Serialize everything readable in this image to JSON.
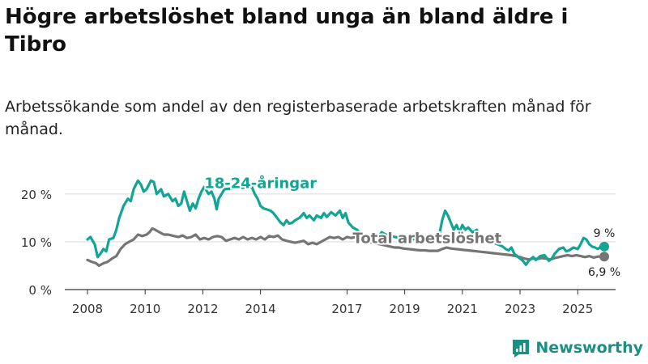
{
  "title": "Högre arbetslöshet bland unga än bland äldre i Tibro",
  "subtitle": "Arbetssökande som andel av den registerbaserade arbetskraften månad för månad.",
  "brand": {
    "name": "Newsworthy",
    "icon": "newsworthy-logo-icon"
  },
  "colors": {
    "youth": "#12a595",
    "total": "#757575",
    "grid": "#d9d9d9",
    "axis": "#333333"
  },
  "chart_data": {
    "type": "line",
    "title": "Högre arbetslöshet bland unga än bland äldre i Tibro",
    "xlabel": "",
    "ylabel": "",
    "xlim": [
      2008,
      2025.92
    ],
    "ylim": [
      0,
      22
    ],
    "grid": true,
    "x_ticks": [
      {
        "value": 2008,
        "label": "2008"
      },
      {
        "value": 2010,
        "label": "2010"
      },
      {
        "value": 2012,
        "label": "2012"
      },
      {
        "value": 2014,
        "label": "2014"
      },
      {
        "value": 2017,
        "label": "2017"
      },
      {
        "value": 2019,
        "label": "2019"
      },
      {
        "value": 2021,
        "label": "2021"
      },
      {
        "value": 2023,
        "label": "2023"
      },
      {
        "value": 2025,
        "label": "2025"
      }
    ],
    "y_ticks": [
      {
        "value": 0,
        "label": "0 %"
      },
      {
        "value": 10,
        "label": "10 %"
      },
      {
        "value": 20,
        "label": "20 %"
      }
    ],
    "series": [
      {
        "name": "18-24-åringar",
        "label": "18-24-åringar",
        "end_label": "9 %",
        "end_value": 9,
        "gaps": [
          [
            2014.12,
            2014.32
          ],
          [
            2017.52,
            2017.82
          ],
          [
            2018.52,
            2018.72
          ],
          [
            2019.28,
            2020.18
          ],
          [
            2022.12,
            2022.38
          ]
        ],
        "points": [
          [
            2008.0,
            10.5
          ],
          [
            2008.1,
            11.0
          ],
          [
            2008.25,
            9.5
          ],
          [
            2008.35,
            6.8
          ],
          [
            2008.45,
            7.5
          ],
          [
            2008.55,
            8.5
          ],
          [
            2008.65,
            8.0
          ],
          [
            2008.75,
            10.5
          ],
          [
            2008.9,
            10.8
          ],
          [
            2009.0,
            12.5
          ],
          [
            2009.1,
            15.0
          ],
          [
            2009.25,
            17.5
          ],
          [
            2009.4,
            19.0
          ],
          [
            2009.5,
            18.5
          ],
          [
            2009.6,
            21.0
          ],
          [
            2009.75,
            22.8
          ],
          [
            2009.85,
            22.0
          ],
          [
            2009.95,
            20.5
          ],
          [
            2010.05,
            21.0
          ],
          [
            2010.2,
            22.8
          ],
          [
            2010.3,
            22.5
          ],
          [
            2010.4,
            20.0
          ],
          [
            2010.55,
            21.0
          ],
          [
            2010.65,
            19.5
          ],
          [
            2010.8,
            20.0
          ],
          [
            2010.95,
            18.5
          ],
          [
            2011.05,
            19.0
          ],
          [
            2011.15,
            17.5
          ],
          [
            2011.25,
            18.0
          ],
          [
            2011.35,
            20.5
          ],
          [
            2011.45,
            18.5
          ],
          [
            2011.55,
            16.5
          ],
          [
            2011.65,
            18.0
          ],
          [
            2011.75,
            17.0
          ],
          [
            2011.85,
            19.0
          ],
          [
            2011.95,
            20.5
          ],
          [
            2012.05,
            21.5
          ],
          [
            2012.2,
            20.0
          ],
          [
            2012.3,
            20.5
          ],
          [
            2012.4,
            19.0
          ],
          [
            2012.48,
            16.8
          ],
          [
            2012.55,
            19.0
          ],
          [
            2012.65,
            20.0
          ],
          [
            2012.75,
            21.0
          ],
          [
            2013.7,
            21.5
          ],
          [
            2013.8,
            20.0
          ],
          [
            2013.9,
            19.0
          ],
          [
            2014.0,
            17.5
          ],
          [
            2014.1,
            17.0
          ],
          [
            2014.35,
            16.5
          ],
          [
            2014.45,
            16.0
          ],
          [
            2014.55,
            15.2
          ],
          [
            2014.7,
            14.0
          ],
          [
            2014.8,
            13.5
          ],
          [
            2014.9,
            14.5
          ],
          [
            2015.0,
            13.8
          ],
          [
            2015.1,
            14.0
          ],
          [
            2015.2,
            14.5
          ],
          [
            2015.35,
            15.0
          ],
          [
            2015.5,
            16.0
          ],
          [
            2015.6,
            15.0
          ],
          [
            2015.7,
            15.5
          ],
          [
            2015.85,
            14.5
          ],
          [
            2015.95,
            15.5
          ],
          [
            2016.1,
            15.0
          ],
          [
            2016.2,
            16.0
          ],
          [
            2016.3,
            15.2
          ],
          [
            2016.45,
            16.2
          ],
          [
            2016.6,
            15.5
          ],
          [
            2016.75,
            16.5
          ],
          [
            2016.85,
            15.0
          ],
          [
            2016.95,
            16.0
          ],
          [
            2017.05,
            14.0
          ],
          [
            2017.2,
            13.0
          ],
          [
            2017.35,
            12.5
          ],
          [
            2017.5,
            11.5
          ],
          [
            2017.85,
            11.0
          ],
          [
            2017.95,
            11.5
          ],
          [
            2018.1,
            11.0
          ],
          [
            2018.2,
            12.0
          ],
          [
            2018.35,
            11.5
          ],
          [
            2018.5,
            11.2
          ],
          [
            2018.75,
            10.9
          ],
          [
            2019.0,
            11.0
          ],
          [
            2019.15,
            10.8
          ],
          [
            2019.25,
            10.5
          ],
          [
            2020.2,
            11.5
          ],
          [
            2020.3,
            14.5
          ],
          [
            2020.4,
            16.5
          ],
          [
            2020.5,
            15.5
          ],
          [
            2020.6,
            14.0
          ],
          [
            2020.7,
            12.5
          ],
          [
            2020.8,
            13.5
          ],
          [
            2020.9,
            12.0
          ],
          [
            2021.0,
            13.5
          ],
          [
            2021.1,
            12.5
          ],
          [
            2021.2,
            13.0
          ],
          [
            2021.35,
            12.0
          ],
          [
            2021.5,
            12.5
          ],
          [
            2021.6,
            11.0
          ],
          [
            2021.7,
            10.5
          ],
          [
            2021.85,
            11.0
          ],
          [
            2022.0,
            10.2
          ],
          [
            2022.1,
            9.8
          ],
          [
            2022.4,
            9.0
          ],
          [
            2022.5,
            8.5
          ],
          [
            2022.6,
            8.2
          ],
          [
            2022.7,
            8.8
          ],
          [
            2022.8,
            7.5
          ],
          [
            2022.9,
            7.0
          ],
          [
            2023.0,
            6.5
          ],
          [
            2023.1,
            6.0
          ],
          [
            2023.2,
            5.2
          ],
          [
            2023.3,
            6.0
          ],
          [
            2023.45,
            6.8
          ],
          [
            2023.55,
            6.2
          ],
          [
            2023.7,
            7.0
          ],
          [
            2023.85,
            7.2
          ],
          [
            2024.0,
            6.0
          ],
          [
            2024.1,
            6.5
          ],
          [
            2024.2,
            7.5
          ],
          [
            2024.35,
            8.5
          ],
          [
            2024.5,
            8.8
          ],
          [
            2024.6,
            8.0
          ],
          [
            2024.7,
            8.2
          ],
          [
            2024.85,
            8.8
          ],
          [
            2025.0,
            8.5
          ],
          [
            2025.1,
            9.5
          ],
          [
            2025.2,
            10.8
          ],
          [
            2025.3,
            10.5
          ],
          [
            2025.4,
            9.5
          ],
          [
            2025.5,
            9.0
          ],
          [
            2025.6,
            8.8
          ],
          [
            2025.7,
            8.5
          ],
          [
            2025.8,
            9.0
          ],
          [
            2025.92,
            9.0
          ]
        ]
      },
      {
        "name": "Total arbetslöshet",
        "label": "Total arbetslöshet",
        "end_label": "6,9 %",
        "end_value": 6.9,
        "gaps": [],
        "points": [
          [
            2008.0,
            6.2
          ],
          [
            2008.15,
            5.8
          ],
          [
            2008.3,
            5.5
          ],
          [
            2008.4,
            5.0
          ],
          [
            2008.55,
            5.5
          ],
          [
            2008.7,
            5.8
          ],
          [
            2008.85,
            6.5
          ],
          [
            2009.0,
            7.0
          ],
          [
            2009.15,
            8.5
          ],
          [
            2009.3,
            9.5
          ],
          [
            2009.45,
            10.0
          ],
          [
            2009.6,
            10.5
          ],
          [
            2009.75,
            11.5
          ],
          [
            2009.9,
            11.2
          ],
          [
            2010.05,
            11.5
          ],
          [
            2010.15,
            12.0
          ],
          [
            2010.25,
            12.8
          ],
          [
            2010.35,
            12.5
          ],
          [
            2010.5,
            12.0
          ],
          [
            2010.65,
            11.5
          ],
          [
            2010.8,
            11.5
          ],
          [
            2011.0,
            11.2
          ],
          [
            2011.15,
            11.0
          ],
          [
            2011.3,
            11.3
          ],
          [
            2011.45,
            10.8
          ],
          [
            2011.6,
            11.0
          ],
          [
            2011.75,
            11.5
          ],
          [
            2011.9,
            10.5
          ],
          [
            2012.05,
            10.8
          ],
          [
            2012.2,
            10.5
          ],
          [
            2012.35,
            11.0
          ],
          [
            2012.5,
            11.2
          ],
          [
            2012.65,
            11.0
          ],
          [
            2012.8,
            10.2
          ],
          [
            2012.95,
            10.5
          ],
          [
            2013.1,
            10.8
          ],
          [
            2013.25,
            10.5
          ],
          [
            2013.4,
            11.0
          ],
          [
            2013.55,
            10.5
          ],
          [
            2013.7,
            10.8
          ],
          [
            2013.85,
            10.5
          ],
          [
            2014.0,
            11.0
          ],
          [
            2014.15,
            10.5
          ],
          [
            2014.3,
            11.2
          ],
          [
            2014.45,
            11.0
          ],
          [
            2014.6,
            11.3
          ],
          [
            2014.75,
            10.5
          ],
          [
            2014.9,
            10.2
          ],
          [
            2015.05,
            10.0
          ],
          [
            2015.2,
            9.8
          ],
          [
            2015.35,
            10.0
          ],
          [
            2015.5,
            10.2
          ],
          [
            2015.65,
            9.5
          ],
          [
            2015.8,
            9.8
          ],
          [
            2015.95,
            9.5
          ],
          [
            2016.1,
            10.0
          ],
          [
            2016.25,
            10.5
          ],
          [
            2016.4,
            11.0
          ],
          [
            2016.55,
            10.8
          ],
          [
            2016.7,
            11.0
          ],
          [
            2016.85,
            10.5
          ],
          [
            2017.0,
            11.0
          ],
          [
            2017.15,
            10.8
          ],
          [
            2017.3,
            11.0
          ],
          [
            2017.45,
            10.5
          ],
          [
            2017.6,
            10.2
          ],
          [
            2017.75,
            10.0
          ],
          [
            2017.9,
            9.8
          ],
          [
            2018.05,
            9.6
          ],
          [
            2018.2,
            9.4
          ],
          [
            2018.35,
            9.2
          ],
          [
            2018.5,
            9.0
          ],
          [
            2018.65,
            8.8
          ],
          [
            2018.8,
            8.8
          ],
          [
            2018.95,
            8.6
          ],
          [
            2019.1,
            8.5
          ],
          [
            2019.25,
            8.4
          ],
          [
            2019.4,
            8.3
          ],
          [
            2019.55,
            8.2
          ],
          [
            2019.7,
            8.2
          ],
          [
            2019.85,
            8.1
          ],
          [
            2020.0,
            8.1
          ],
          [
            2020.15,
            8.1
          ],
          [
            2020.3,
            8.5
          ],
          [
            2020.45,
            8.8
          ],
          [
            2020.6,
            8.6
          ],
          [
            2020.75,
            8.5
          ],
          [
            2020.9,
            8.4
          ],
          [
            2021.05,
            8.3
          ],
          [
            2021.2,
            8.2
          ],
          [
            2021.35,
            8.1
          ],
          [
            2021.5,
            8.0
          ],
          [
            2021.65,
            7.9
          ],
          [
            2021.8,
            7.8
          ],
          [
            2021.95,
            7.7
          ],
          [
            2022.1,
            7.6
          ],
          [
            2022.25,
            7.5
          ],
          [
            2022.4,
            7.4
          ],
          [
            2022.55,
            7.3
          ],
          [
            2022.7,
            7.2
          ],
          [
            2022.85,
            7.0
          ],
          [
            2023.0,
            6.8
          ],
          [
            2023.15,
            6.5
          ],
          [
            2023.3,
            6.3
          ],
          [
            2023.45,
            6.5
          ],
          [
            2023.6,
            6.4
          ],
          [
            2023.75,
            6.6
          ],
          [
            2023.9,
            6.5
          ],
          [
            2024.05,
            6.3
          ],
          [
            2024.2,
            6.6
          ],
          [
            2024.35,
            6.8
          ],
          [
            2024.5,
            7.0
          ],
          [
            2024.65,
            7.2
          ],
          [
            2024.8,
            7.0
          ],
          [
            2024.95,
            7.2
          ],
          [
            2025.1,
            7.0
          ],
          [
            2025.25,
            6.8
          ],
          [
            2025.4,
            7.0
          ],
          [
            2025.55,
            6.7
          ],
          [
            2025.7,
            6.9
          ],
          [
            2025.92,
            6.9
          ]
        ]
      }
    ]
  }
}
